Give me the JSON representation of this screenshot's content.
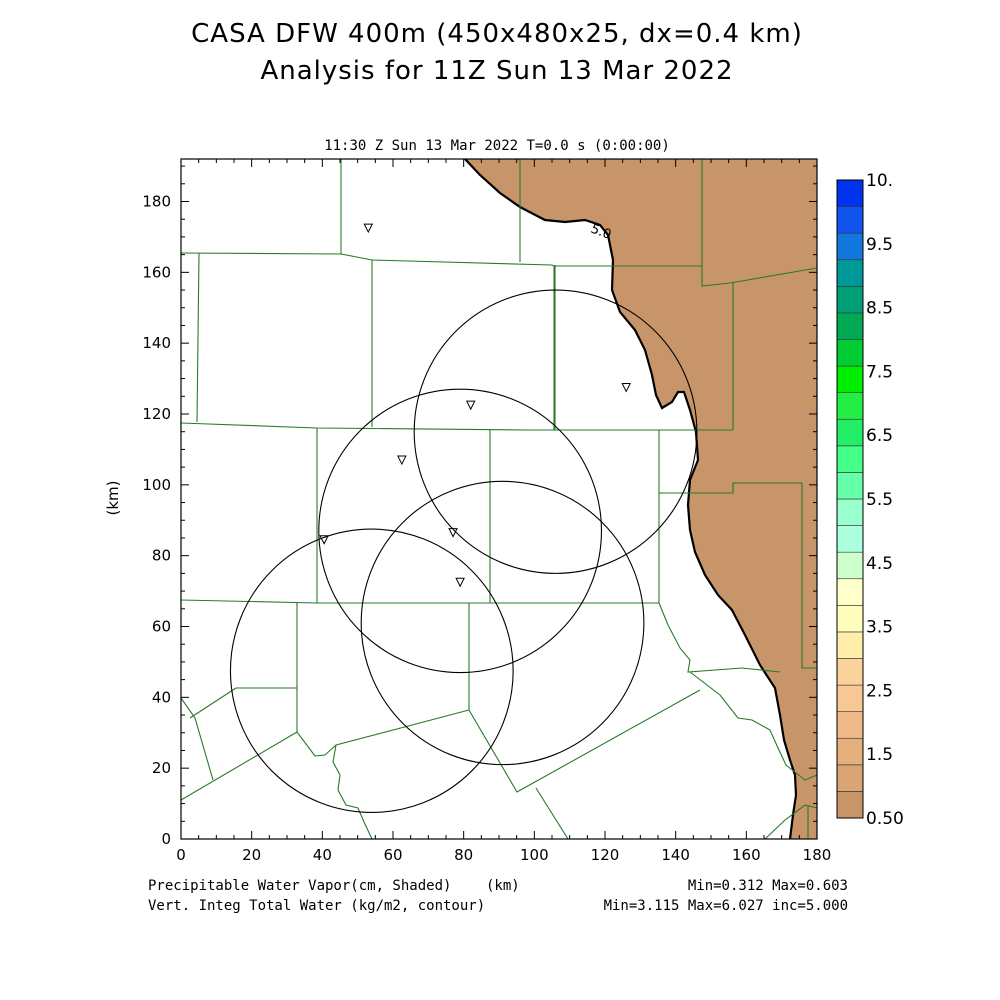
{
  "title_line1": "CASA DFW 400m (450x480x25, dx=0.4 km)",
  "title_line2": "Analysis for 11Z Sun 13 Mar 2022",
  "plot_subtitle": "11:30 Z Sun 13 Mar 2022    T=0.0 s (0:00:00)",
  "contour_label": "5.0",
  "footer": {
    "left1": "Precipitable Water Vapor(cm, Shaded)",
    "xunit": "(km)",
    "left2": "Vert. Integ Total Water (kg/m2, contour)",
    "right1": "Min=0.312 Max=0.603",
    "right2": "Min=3.115 Max=6.027 inc=5.000"
  },
  "chart_data": {
    "type": "map",
    "xlabel": "(km)",
    "ylabel": "(km)",
    "xlim": [
      0,
      180
    ],
    "ylim": [
      0,
      192
    ],
    "xticks": [
      "0",
      "20",
      "40",
      "60",
      "80",
      "100",
      "120",
      "140",
      "160",
      "180"
    ],
    "yticks": [
      "0",
      "20",
      "40",
      "60",
      "80",
      "100",
      "120",
      "140",
      "160",
      "180"
    ],
    "colorbar": {
      "labels": [
        "0.50",
        "1.5",
        "2.5",
        "3.5",
        "4.5",
        "5.5",
        "6.5",
        "7.5",
        "8.5",
        "9.5",
        "10."
      ],
      "colors": [
        "#c8956a",
        "#d9a574",
        "#e5b07e",
        "#efb988",
        "#f7c896",
        "#fbd29c",
        "#ffeeaa",
        "#ffffbb",
        "#ffffcc",
        "#ccffcc",
        "#aaffdd",
        "#99ffcc",
        "#66ffaa",
        "#44ff88",
        "#22ee66",
        "#22ee44",
        "#00ee00",
        "#00cc33",
        "#00aa55",
        "#00a077",
        "#009999",
        "#1177dd",
        "#1155ee",
        "#0033ee"
      ],
      "fill_color": "#c8956a"
    },
    "radar_sites": [
      {
        "x": 53,
        "y": 172.5
      },
      {
        "x": 82,
        "y": 122.5
      },
      {
        "x": 126,
        "y": 127.5
      },
      {
        "x": 62.5,
        "y": 107
      },
      {
        "x": 77,
        "y": 86.5
      },
      {
        "x": 40.5,
        "y": 84.5
      },
      {
        "x": 79,
        "y": 72.5
      }
    ],
    "range_rings": [
      {
        "cx": 106,
        "cy": 115,
        "r": 40
      },
      {
        "cx": 79,
        "cy": 87,
        "r": 40
      },
      {
        "cx": 91,
        "cy": 61,
        "r": 40
      },
      {
        "cx": 54,
        "cy": 47.5,
        "r": 40
      }
    ],
    "contour_value": 5.0
  }
}
